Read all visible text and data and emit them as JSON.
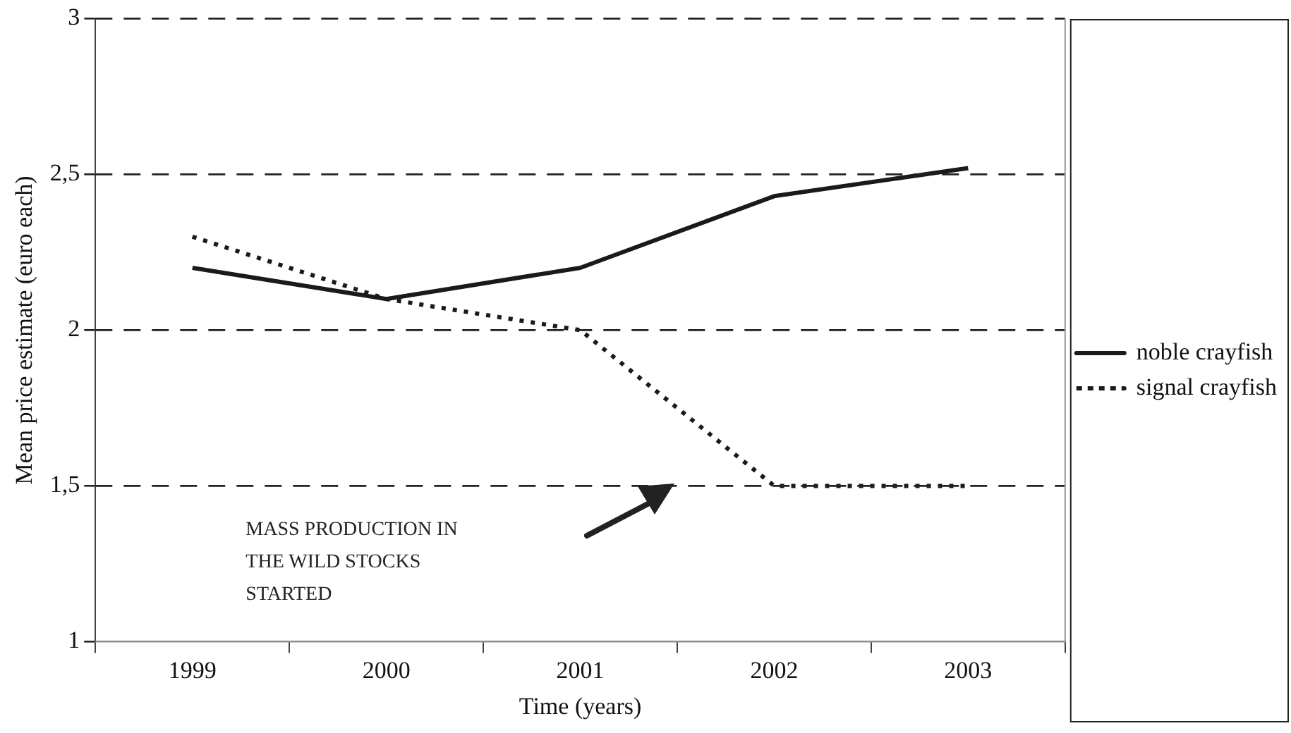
{
  "chart_data": {
    "type": "line",
    "xlabel": "Time (years)",
    "ylabel": "Mean price estimate (euro each)",
    "categories": [
      "1999",
      "2000",
      "2001",
      "2002",
      "2003"
    ],
    "series": [
      {
        "name": "noble crayfish",
        "color": "#1a1a1a",
        "line_style": "solid",
        "values": [
          2.2,
          2.1,
          2.2,
          2.43,
          2.52
        ]
      },
      {
        "name": "signal crayfish",
        "color": "#1a1a1a",
        "line_style": "dotted",
        "values": [
          2.3,
          2.1,
          2.0,
          1.5,
          1.5
        ]
      }
    ],
    "ylim": [
      1,
      3
    ],
    "yticks": [
      1,
      {
        "value": 1.5,
        "label": "1,5"
      },
      2,
      {
        "value": 2.5,
        "label": "2,5"
      },
      3
    ],
    "grid": "y",
    "legend": "right",
    "marker": "none",
    "annotations": [
      "MASS PRODUCTION IN THE WILD STOCKS STARTED"
    ]
  }
}
